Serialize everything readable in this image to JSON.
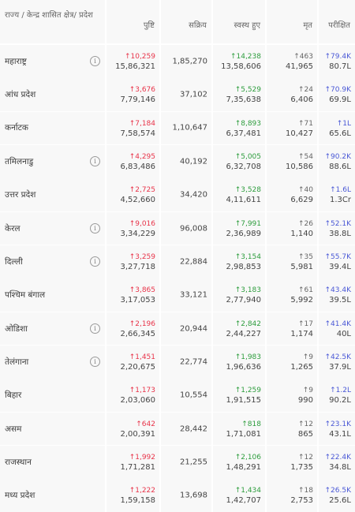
{
  "headers": {
    "state": "राज्य / केन्द्र शासित क्षेत्र/ प्रदेश",
    "confirmed": "पुष्टि",
    "active": "सक्रिय",
    "recovered": "स्वस्थ हुए",
    "deceased": "मृत",
    "tested": "परीक्षित"
  },
  "rows": [
    {
      "name": "महाराष्ट्र",
      "info": true,
      "confirmed_delta": "↑10,259",
      "confirmed": "15,86,321",
      "active": "1,85,270",
      "recovered_delta": "↑14,238",
      "recovered": "13,58,606",
      "deceased_delta": "↑463",
      "deceased": "41,965",
      "tested_delta": "↑79.4K",
      "tested": "80.7L"
    },
    {
      "name": "आंध प्रदेश",
      "info": false,
      "confirmed_delta": "↑3,676",
      "confirmed": "7,79,146",
      "active": "37,102",
      "recovered_delta": "↑5,529",
      "recovered": "7,35,638",
      "deceased_delta": "↑24",
      "deceased": "6,406",
      "tested_delta": "↑70.9K",
      "tested": "69.9L"
    },
    {
      "name": "कर्नाटक",
      "info": false,
      "confirmed_delta": "↑7,184",
      "confirmed": "7,58,574",
      "active": "1,10,647",
      "recovered_delta": "↑8,893",
      "recovered": "6,37,481",
      "deceased_delta": "↑71",
      "deceased": "10,427",
      "tested_delta": "↑1L",
      "tested": "65.6L"
    },
    {
      "name": "तमिलनाडु",
      "info": true,
      "confirmed_delta": "↑4,295",
      "confirmed": "6,83,486",
      "active": "40,192",
      "recovered_delta": "↑5,005",
      "recovered": "6,32,708",
      "deceased_delta": "↑54",
      "deceased": "10,586",
      "tested_delta": "↑90.2K",
      "tested": "88.6L"
    },
    {
      "name": "उत्तर प्रदेश",
      "info": false,
      "confirmed_delta": "↑2,725",
      "confirmed": "4,52,660",
      "active": "34,420",
      "recovered_delta": "↑3,528",
      "recovered": "4,11,611",
      "deceased_delta": "↑40",
      "deceased": "6,629",
      "tested_delta": "↑1.6L",
      "tested": "1.3Cr"
    },
    {
      "name": "केरल",
      "info": true,
      "confirmed_delta": "↑9,016",
      "confirmed": "3,34,229",
      "active": "96,008",
      "recovered_delta": "↑7,991",
      "recovered": "2,36,989",
      "deceased_delta": "↑26",
      "deceased": "1,140",
      "tested_delta": "↑52.1K",
      "tested": "38.8L"
    },
    {
      "name": "दिल्ली",
      "info": true,
      "confirmed_delta": "↑3,259",
      "confirmed": "3,27,718",
      "active": "22,884",
      "recovered_delta": "↑3,154",
      "recovered": "2,98,853",
      "deceased_delta": "↑35",
      "deceased": "5,981",
      "tested_delta": "↑55.7K",
      "tested": "39.4L"
    },
    {
      "name": "पश्चिम बंगाल",
      "info": false,
      "confirmed_delta": "↑3,865",
      "confirmed": "3,17,053",
      "active": "33,121",
      "recovered_delta": "↑3,183",
      "recovered": "2,77,940",
      "deceased_delta": "↑61",
      "deceased": "5,992",
      "tested_delta": "↑43.4K",
      "tested": "39.5L"
    },
    {
      "name": "ओडिशा",
      "info": true,
      "confirmed_delta": "↑2,196",
      "confirmed": "2,66,345",
      "active": "20,944",
      "recovered_delta": "↑2,842",
      "recovered": "2,44,227",
      "deceased_delta": "↑17",
      "deceased": "1,174",
      "tested_delta": "↑41.4K",
      "tested": "40L"
    },
    {
      "name": "तेलंगाना",
      "info": true,
      "confirmed_delta": "↑1,451",
      "confirmed": "2,20,675",
      "active": "22,774",
      "recovered_delta": "↑1,983",
      "recovered": "1,96,636",
      "deceased_delta": "↑9",
      "deceased": "1,265",
      "tested_delta": "↑42.5K",
      "tested": "37.9L"
    },
    {
      "name": "बिहार",
      "info": false,
      "confirmed_delta": "↑1,173",
      "confirmed": "2,03,060",
      "active": "10,554",
      "recovered_delta": "↑1,259",
      "recovered": "1,91,515",
      "deceased_delta": "↑9",
      "deceased": "990",
      "tested_delta": "↑1.2L",
      "tested": "90.2L"
    },
    {
      "name": "असम",
      "info": false,
      "confirmed_delta": "↑642",
      "confirmed": "2,00,391",
      "active": "28,442",
      "recovered_delta": "↑818",
      "recovered": "1,71,081",
      "deceased_delta": "↑12",
      "deceased": "865",
      "tested_delta": "↑23.1K",
      "tested": "43.1L"
    },
    {
      "name": "राजस्थान",
      "info": false,
      "confirmed_delta": "↑1,992",
      "confirmed": "1,71,281",
      "active": "21,255",
      "recovered_delta": "↑2,106",
      "recovered": "1,48,291",
      "deceased_delta": "↑12",
      "deceased": "1,735",
      "tested_delta": "↑22.4K",
      "tested": "34.8L"
    },
    {
      "name": "मध्य प्रदेश",
      "info": false,
      "confirmed_delta": "↑1,222",
      "confirmed": "1,59,158",
      "active": "13,698",
      "recovered_delta": "↑1,434",
      "recovered": "1,42,707",
      "deceased_delta": "↑18",
      "deceased": "2,753",
      "tested_delta": "↑26.5K",
      "tested": "25.6L"
    }
  ],
  "icons": {
    "info": "info-circle-icon"
  },
  "colors": {
    "confirmed_delta": "#e8344a",
    "recovered_delta": "#2e9d3e",
    "deceased_delta": "#666666",
    "tested_delta": "#4a58d6",
    "cell_bg": "#f8f8f8"
  }
}
